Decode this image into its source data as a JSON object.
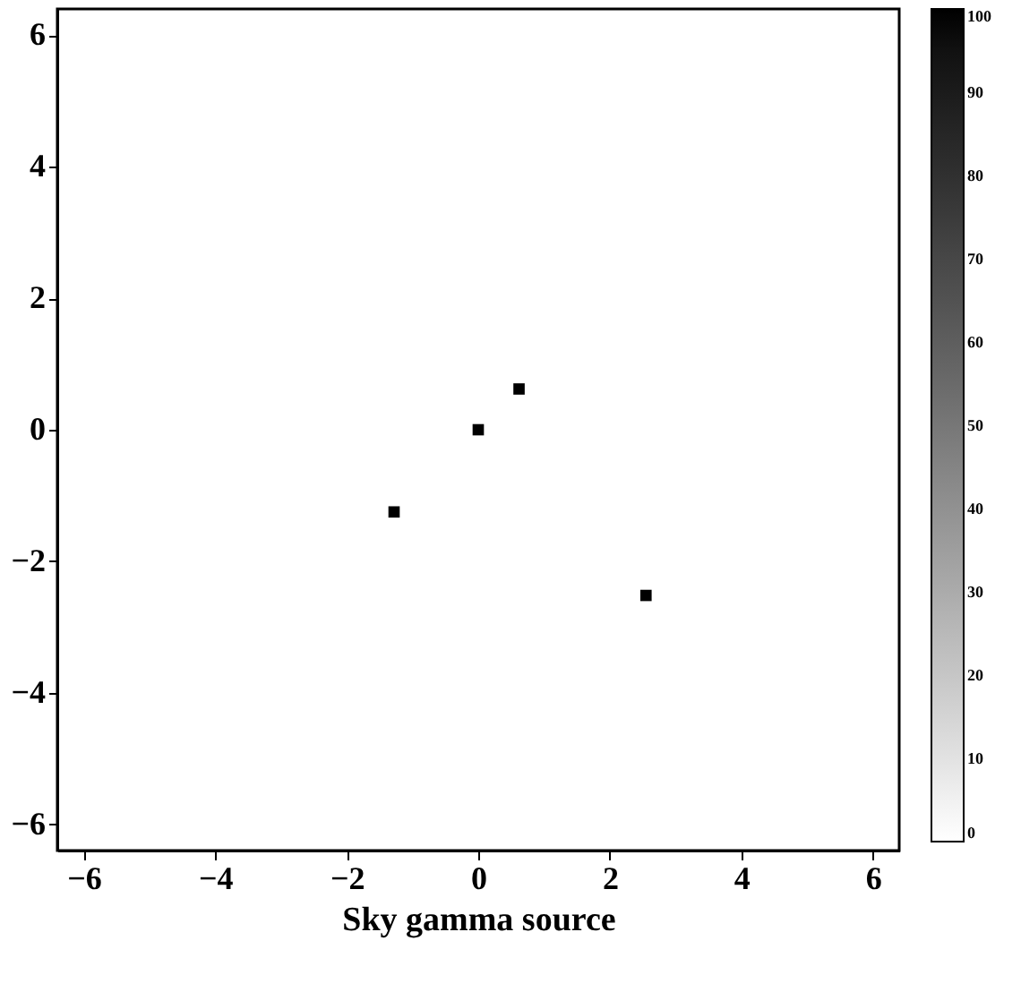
{
  "chart_data": {
    "type": "scatter",
    "xlabel": "Sky gamma source",
    "x": [
      0,
      0.62,
      -1.28,
      2.55
    ],
    "values": [
      0,
      0.62,
      -1.25,
      -2.52
    ],
    "cvalues": [
      100,
      100,
      100,
      100
    ],
    "marker": "square",
    "xlim": [
      -6.4,
      6.4
    ],
    "ylim": [
      -6.4,
      6.4
    ],
    "xticks": [
      -6,
      -4,
      -2,
      0,
      2,
      4,
      6
    ],
    "yticks": [
      -6,
      -4,
      -2,
      0,
      2,
      4,
      6
    ],
    "clim": [
      0,
      100
    ],
    "cticks": [
      0,
      10,
      20,
      30,
      40,
      50,
      60,
      70,
      80,
      90,
      100
    ],
    "grid": false
  }
}
